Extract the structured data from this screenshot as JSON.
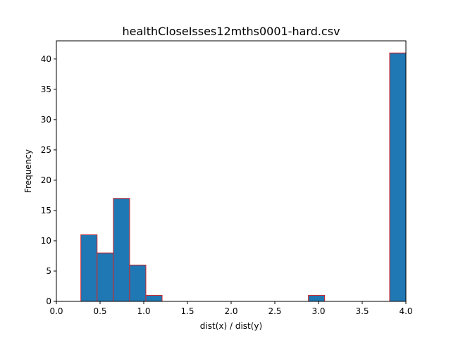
{
  "chart_data": {
    "type": "bar",
    "title": "healthCloseIsses12mths0001-hard.csv",
    "xlabel": "dist(x) / dist(y)",
    "ylabel": "Frequency",
    "xlim": [
      0,
      4.0
    ],
    "ylim": [
      0,
      43
    ],
    "xticks": [
      "0.0",
      "0.5",
      "1.0",
      "1.5",
      "2.0",
      "2.5",
      "3.0",
      "3.5",
      "4.0"
    ],
    "yticks": [
      "0",
      "5",
      "10",
      "15",
      "20",
      "25",
      "30",
      "35",
      "40"
    ],
    "bin_edges": [
      0.28,
      0.466,
      0.652,
      0.838,
      1.024,
      1.21,
      1.396,
      1.582,
      1.768,
      1.954,
      2.14,
      2.326,
      2.512,
      2.698,
      2.884,
      3.07,
      3.256,
      3.442,
      3.628,
      3.814,
      4.0
    ],
    "counts": [
      11,
      8,
      17,
      6,
      1,
      0,
      0,
      0,
      0,
      0,
      0,
      0,
      0,
      0,
      1,
      0,
      0,
      0,
      0,
      41
    ],
    "bar_fill": "#1f77b4",
    "bar_edge": "#d62728",
    "grid": false,
    "legend": "none"
  }
}
